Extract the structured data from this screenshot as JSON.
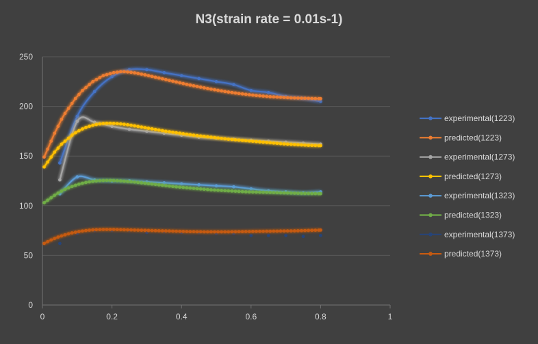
{
  "chart_data": {
    "type": "line",
    "title": "N3(strain rate = 0.01s-1)",
    "xlabel": "",
    "ylabel": "",
    "xlim": [
      0,
      1
    ],
    "ylim": [
      0,
      250
    ],
    "xticks": [
      0,
      0.2,
      0.4,
      0.6,
      0.8,
      1
    ],
    "yticks": [
      0,
      50,
      100,
      150,
      200,
      250
    ],
    "xtick_labels": [
      "0",
      "0.2",
      "0.4",
      "0.6",
      "0.8",
      "1"
    ],
    "ytick_labels": [
      "0",
      "50",
      "100",
      "150",
      "200",
      "250"
    ],
    "grid": "horizontal",
    "legend_position": "right",
    "series": [
      {
        "name": "experimental(1223)",
        "color": "#4472c4",
        "x": [
          0.05,
          0.1,
          0.15,
          0.2,
          0.25,
          0.3,
          0.35,
          0.4,
          0.45,
          0.5,
          0.55,
          0.6,
          0.65,
          0.7,
          0.75,
          0.8
        ],
        "y": [
          143,
          190,
          215,
          230,
          237,
          237,
          234,
          231,
          228,
          225,
          222,
          216,
          214,
          210,
          208,
          205
        ]
      },
      {
        "name": "predicted(1223)",
        "color": "#ed7d31",
        "x": [
          0.005,
          0.015,
          0.025,
          0.035,
          0.045,
          0.055,
          0.065,
          0.075,
          0.085,
          0.095,
          0.105,
          0.115,
          0.125,
          0.135,
          0.145,
          0.155,
          0.165,
          0.175,
          0.185,
          0.195,
          0.205,
          0.215,
          0.225,
          0.235,
          0.245,
          0.255,
          0.265,
          0.275,
          0.285,
          0.295,
          0.305,
          0.315,
          0.325,
          0.335,
          0.345,
          0.355,
          0.365,
          0.375,
          0.385,
          0.395,
          0.405,
          0.415,
          0.425,
          0.435,
          0.445,
          0.455,
          0.465,
          0.475,
          0.485,
          0.495,
          0.505,
          0.515,
          0.525,
          0.535,
          0.545,
          0.555,
          0.565,
          0.575,
          0.585,
          0.595,
          0.605,
          0.615,
          0.625,
          0.635,
          0.645,
          0.655,
          0.665,
          0.675,
          0.685,
          0.695,
          0.705,
          0.715,
          0.725,
          0.735,
          0.745,
          0.755,
          0.765,
          0.775,
          0.785,
          0.795,
          0.8
        ],
        "y": [
          149,
          157,
          165,
          173,
          180,
          187,
          193,
          198,
          203,
          208,
          212,
          216,
          219,
          222,
          225,
          227,
          229,
          231,
          232,
          233,
          234,
          234.5,
          235,
          235,
          234.7,
          234.3,
          233.8,
          233.2,
          232.5,
          231.8,
          231,
          230.2,
          229.4,
          228.6,
          227.8,
          227,
          226.2,
          225.4,
          224.6,
          223.8,
          223,
          222.2,
          221.5,
          220.8,
          220.1,
          219.4,
          218.7,
          218,
          217.4,
          216.8,
          216.2,
          215.6,
          215,
          214.5,
          214,
          213.5,
          213,
          212.6,
          212.2,
          211.8,
          211.4,
          211,
          210.7,
          210.4,
          210.1,
          209.8,
          209.6,
          209.4,
          209.2,
          209,
          208.8,
          208.6,
          208.5,
          208.4,
          208.3,
          208.2,
          208.1,
          208,
          207.9,
          207.8,
          207.8
        ]
      },
      {
        "name": "experimental(1273)",
        "color": "#a5a5a5",
        "x": [
          0.05,
          0.1,
          0.15,
          0.2,
          0.25,
          0.3,
          0.35,
          0.4,
          0.45,
          0.5,
          0.55,
          0.6,
          0.65,
          0.7,
          0.75,
          0.8
        ],
        "y": [
          126,
          185,
          184,
          180,
          177,
          175,
          173,
          171,
          169,
          168,
          167,
          166,
          165,
          164,
          163,
          162
        ]
      },
      {
        "name": "predicted(1273)",
        "color": "#ffc000",
        "x": [
          0.005,
          0.015,
          0.025,
          0.035,
          0.045,
          0.055,
          0.065,
          0.075,
          0.085,
          0.095,
          0.105,
          0.115,
          0.125,
          0.135,
          0.145,
          0.155,
          0.165,
          0.175,
          0.185,
          0.195,
          0.205,
          0.215,
          0.225,
          0.235,
          0.245,
          0.255,
          0.265,
          0.275,
          0.285,
          0.295,
          0.305,
          0.315,
          0.325,
          0.335,
          0.345,
          0.355,
          0.365,
          0.375,
          0.385,
          0.395,
          0.405,
          0.415,
          0.425,
          0.435,
          0.445,
          0.455,
          0.465,
          0.475,
          0.485,
          0.495,
          0.505,
          0.515,
          0.525,
          0.535,
          0.545,
          0.555,
          0.565,
          0.575,
          0.585,
          0.595,
          0.605,
          0.615,
          0.625,
          0.635,
          0.645,
          0.655,
          0.665,
          0.675,
          0.685,
          0.695,
          0.705,
          0.715,
          0.725,
          0.735,
          0.745,
          0.755,
          0.765,
          0.775,
          0.785,
          0.795,
          0.8
        ],
        "y": [
          139,
          144,
          149,
          154,
          158,
          162,
          165,
          168,
          171,
          173.5,
          175.5,
          177.3,
          178.8,
          180,
          181,
          181.8,
          182.4,
          182.8,
          183,
          183,
          182.9,
          182.7,
          182.4,
          182,
          181.5,
          181,
          180.4,
          179.8,
          179.2,
          178.6,
          178,
          177.4,
          176.8,
          176.2,
          175.6,
          175,
          174.5,
          174,
          173.5,
          173,
          172.5,
          172,
          171.5,
          171,
          170.6,
          170.2,
          169.8,
          169.4,
          169,
          168.6,
          168.2,
          167.8,
          167.4,
          167,
          166.7,
          166.4,
          166.1,
          165.8,
          165.5,
          165.2,
          164.9,
          164.6,
          164.3,
          164,
          163.7,
          163.4,
          163.1,
          162.8,
          162.5,
          162.2,
          162,
          161.8,
          161.6,
          161.4,
          161.2,
          161,
          160.8,
          160.7,
          160.6,
          160.5,
          160.5
        ]
      },
      {
        "name": "experimental(1323)",
        "color": "#5b9bd5",
        "x": [
          0.05,
          0.1,
          0.15,
          0.2,
          0.25,
          0.3,
          0.35,
          0.4,
          0.45,
          0.5,
          0.55,
          0.6,
          0.65,
          0.7,
          0.75,
          0.8
        ],
        "y": [
          112,
          129,
          126,
          125,
          125,
          124,
          123,
          122,
          121,
          120,
          119,
          117,
          115,
          114,
          113,
          114
        ]
      },
      {
        "name": "predicted(1323)",
        "color": "#70ad47",
        "x": [
          0.005,
          0.015,
          0.025,
          0.035,
          0.045,
          0.055,
          0.065,
          0.075,
          0.085,
          0.095,
          0.105,
          0.115,
          0.125,
          0.135,
          0.145,
          0.155,
          0.165,
          0.175,
          0.185,
          0.195,
          0.205,
          0.215,
          0.225,
          0.235,
          0.245,
          0.255,
          0.265,
          0.275,
          0.285,
          0.295,
          0.305,
          0.315,
          0.325,
          0.335,
          0.345,
          0.355,
          0.365,
          0.375,
          0.385,
          0.395,
          0.405,
          0.415,
          0.425,
          0.435,
          0.445,
          0.455,
          0.465,
          0.475,
          0.485,
          0.495,
          0.505,
          0.515,
          0.525,
          0.535,
          0.545,
          0.555,
          0.565,
          0.575,
          0.585,
          0.595,
          0.605,
          0.615,
          0.625,
          0.635,
          0.645,
          0.655,
          0.665,
          0.675,
          0.685,
          0.695,
          0.705,
          0.715,
          0.725,
          0.735,
          0.745,
          0.755,
          0.765,
          0.775,
          0.785,
          0.795,
          0.8
        ],
        "y": [
          103,
          105.5,
          108,
          110.5,
          112.7,
          114.7,
          116.5,
          118,
          119.4,
          120.6,
          121.7,
          122.6,
          123.4,
          124,
          124.5,
          124.9,
          125.2,
          125.4,
          125.5,
          125.5,
          125.4,
          125.2,
          125,
          124.7,
          124.4,
          124.1,
          123.8,
          123.4,
          123,
          122.6,
          122.2,
          121.8,
          121.4,
          121,
          120.6,
          120.2,
          119.8,
          119.4,
          119,
          118.7,
          118.4,
          118.1,
          117.8,
          117.5,
          117.2,
          116.9,
          116.6,
          116.3,
          116,
          115.8,
          115.6,
          115.4,
          115.2,
          115,
          114.8,
          114.6,
          114.4,
          114.2,
          114,
          113.9,
          113.8,
          113.7,
          113.6,
          113.5,
          113.4,
          113.3,
          113.2,
          113.1,
          113,
          112.9,
          112.8,
          112.7,
          112.6,
          112.5,
          112.4,
          112.3,
          112.3,
          112.2,
          112.2,
          112.1,
          112.1
        ]
      },
      {
        "name": "experimental(1373)",
        "color": "#264478",
        "x": [
          0.05,
          0.1,
          0.15,
          0.2,
          0.25,
          0.3,
          0.35,
          0.4,
          0.45,
          0.5,
          0.55,
          0.6,
          0.65,
          0.7,
          0.75,
          0.8
        ],
        "y": [
          62,
          72,
          75,
          75,
          75,
          73,
          74,
          73,
          73,
          72,
          72,
          70,
          70,
          70,
          69,
          70
        ]
      },
      {
        "name": "predicted(1373)",
        "color": "#c55a11",
        "x": [
          0.005,
          0.015,
          0.025,
          0.035,
          0.045,
          0.055,
          0.065,
          0.075,
          0.085,
          0.095,
          0.105,
          0.115,
          0.125,
          0.135,
          0.145,
          0.155,
          0.165,
          0.175,
          0.185,
          0.195,
          0.205,
          0.215,
          0.225,
          0.235,
          0.245,
          0.255,
          0.265,
          0.275,
          0.285,
          0.295,
          0.305,
          0.315,
          0.325,
          0.335,
          0.345,
          0.355,
          0.365,
          0.375,
          0.385,
          0.395,
          0.405,
          0.415,
          0.425,
          0.435,
          0.445,
          0.455,
          0.465,
          0.475,
          0.485,
          0.495,
          0.505,
          0.515,
          0.525,
          0.535,
          0.545,
          0.555,
          0.565,
          0.575,
          0.585,
          0.595,
          0.605,
          0.615,
          0.625,
          0.635,
          0.645,
          0.655,
          0.665,
          0.675,
          0.685,
          0.695,
          0.705,
          0.715,
          0.725,
          0.735,
          0.745,
          0.755,
          0.765,
          0.775,
          0.785,
          0.795,
          0.8
        ],
        "y": [
          62,
          63.8,
          65.5,
          67,
          68.4,
          69.6,
          70.7,
          71.7,
          72.6,
          73.3,
          74,
          74.5,
          75,
          75.4,
          75.7,
          75.9,
          76,
          76.1,
          76.1,
          76.1,
          76.1,
          76,
          75.9,
          75.8,
          75.7,
          75.6,
          75.5,
          75.4,
          75.3,
          75.2,
          75.1,
          75,
          74.9,
          74.8,
          74.7,
          74.6,
          74.5,
          74.4,
          74.3,
          74.2,
          74.1,
          74,
          73.9,
          73.9,
          73.8,
          73.8,
          73.7,
          73.7,
          73.7,
          73.7,
          73.7,
          73.7,
          73.7,
          73.7,
          73.8,
          73.8,
          73.9,
          73.9,
          74,
          74,
          74.1,
          74.1,
          74.2,
          74.2,
          74.3,
          74.3,
          74.4,
          74.4,
          74.5,
          74.5,
          74.6,
          74.6,
          74.7,
          74.8,
          74.9,
          75,
          75.1,
          75.2,
          75.3,
          75.4,
          75.5
        ]
      }
    ]
  }
}
